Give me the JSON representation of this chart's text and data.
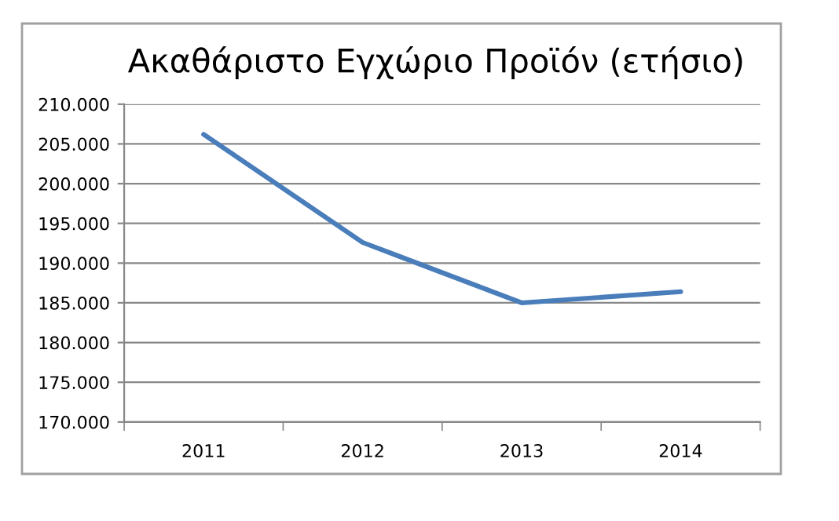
{
  "chart_data": {
    "type": "line",
    "title": "Ακαθάριστο Εγχώριο Προϊόν (ετήσιο)",
    "categories": [
      "2011",
      "2012",
      "2013",
      "2014"
    ],
    "series": [
      {
        "color": "#4a7ebb",
        "values": [
          206200,
          192600,
          185000,
          186400
        ]
      }
    ],
    "ylim": [
      170000,
      210000
    ],
    "yticks": [
      {
        "value": 170000,
        "label": "170.000"
      },
      {
        "value": 175000,
        "label": "175.000"
      },
      {
        "value": 180000,
        "label": "180.000"
      },
      {
        "value": 185000,
        "label": "185.000"
      },
      {
        "value": 190000,
        "label": "190.000"
      },
      {
        "value": 195000,
        "label": "195.000"
      },
      {
        "value": 200000,
        "label": "200.000"
      },
      {
        "value": 205000,
        "label": "205.000"
      },
      {
        "value": 210000,
        "label": "210.000"
      }
    ],
    "grid": "y",
    "marker": "none",
    "line_style": "solid"
  }
}
